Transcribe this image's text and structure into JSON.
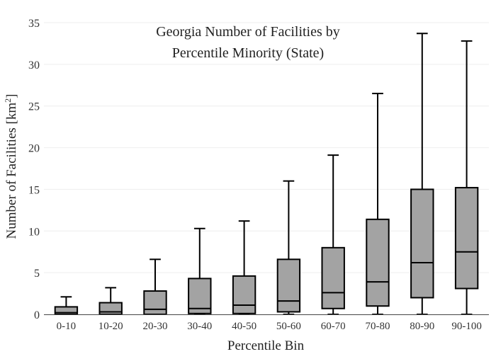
{
  "chart_data": {
    "type": "box",
    "title_line1": "Georgia Number of Facilities by",
    "title_line2": "Percentile Minority (State)",
    "xlabel": "Percentile Bin",
    "ylabel_main": "Number of Facilities  [km",
    "ylabel_sup": "2",
    "ylabel_end": "]",
    "ylim": [
      0,
      35
    ],
    "yticks": [
      0,
      5,
      10,
      15,
      20,
      25,
      30,
      35
    ],
    "grid": true,
    "box_color": "#a3a3a3",
    "categories": [
      "0-10",
      "10-20",
      "20-30",
      "30-40",
      "40-50",
      "50-60",
      "60-70",
      "70-80",
      "80-90",
      "90-100"
    ],
    "boxes": [
      {
        "min": 0,
        "q1": 0,
        "median": 0.2,
        "q3": 0.9,
        "max": 2.1
      },
      {
        "min": 0,
        "q1": 0,
        "median": 0.3,
        "q3": 1.4,
        "max": 3.2
      },
      {
        "min": 0,
        "q1": 0,
        "median": 0.6,
        "q3": 2.8,
        "max": 6.6
      },
      {
        "min": 0,
        "q1": 0.1,
        "median": 0.7,
        "q3": 4.3,
        "max": 10.3
      },
      {
        "min": 0,
        "q1": 0.1,
        "median": 1.1,
        "q3": 4.6,
        "max": 11.2
      },
      {
        "min": 0,
        "q1": 0.3,
        "median": 1.6,
        "q3": 6.6,
        "max": 16.0
      },
      {
        "min": 0,
        "q1": 0.7,
        "median": 2.6,
        "q3": 8.0,
        "max": 19.1
      },
      {
        "min": 0,
        "q1": 1.0,
        "median": 3.9,
        "q3": 11.4,
        "max": 26.5
      },
      {
        "min": 0,
        "q1": 2.0,
        "median": 6.2,
        "q3": 15.0,
        "max": 33.7
      },
      {
        "min": 0,
        "q1": 3.1,
        "median": 7.5,
        "q3": 15.2,
        "max": 32.8
      }
    ]
  }
}
